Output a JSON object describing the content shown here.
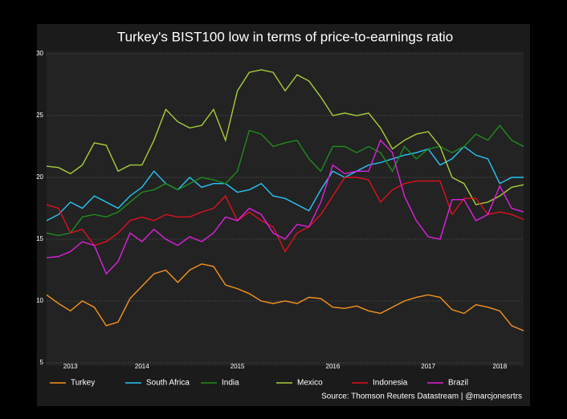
{
  "chart_data": {
    "type": "line",
    "title": "Turkey's BIST100 low in terms of price-to-earnings ratio",
    "source": "Source: Thomson Reuters Datastream | @marcjonesrtrs",
    "x": [
      2013.5,
      2013.625,
      2013.75,
      2013.875,
      2014,
      2014.125,
      2014.25,
      2014.375,
      2014.5,
      2014.625,
      2014.75,
      2014.875,
      2015,
      2015.125,
      2015.25,
      2015.375,
      2015.5,
      2015.625,
      2015.75,
      2015.875,
      2016,
      2016.125,
      2016.25,
      2016.375,
      2016.5,
      2016.625,
      2016.75,
      2016.875,
      2017,
      2017.125,
      2017.25,
      2017.375,
      2017.5,
      2017.625,
      2017.75,
      2017.875,
      2018,
      2018.125,
      2018.25,
      2018.375,
      2018.5
    ],
    "xlim": [
      2013.5,
      2018.5
    ],
    "xticks": [
      {
        "value": 2013.75,
        "label": "2013"
      },
      {
        "value": 2014.5,
        "label": "2014"
      },
      {
        "value": 2015.5,
        "label": "2015"
      },
      {
        "value": 2016.5,
        "label": "2016"
      },
      {
        "value": 2017.5,
        "label": "2017"
      },
      {
        "value": 2018.25,
        "label": "2018"
      }
    ],
    "ylim": [
      5,
      30
    ],
    "yticks": [
      5,
      10,
      15,
      20,
      25,
      30
    ],
    "grid": true,
    "series": [
      {
        "name": "Turkey",
        "color": "#f7931e",
        "values": [
          10.5,
          9.8,
          9.2,
          10.0,
          9.5,
          8.0,
          8.3,
          10.2,
          11.2,
          12.2,
          12.5,
          11.5,
          12.5,
          13.0,
          12.8,
          11.3,
          11.0,
          10.6,
          10.0,
          9.8,
          10.0,
          9.8,
          10.3,
          10.2,
          9.5,
          9.4,
          9.6,
          9.2,
          9.0,
          9.5,
          10.0,
          10.3,
          10.5,
          10.3,
          9.3,
          9.0,
          9.7,
          9.5,
          9.2,
          8.0,
          7.6
        ]
      },
      {
        "name": "South Africa",
        "color": "#29c5f6",
        "values": [
          16.5,
          17.0,
          18.0,
          17.5,
          18.5,
          18.0,
          17.5,
          18.5,
          19.2,
          20.5,
          19.5,
          19.0,
          20.0,
          19.2,
          19.5,
          19.5,
          18.8,
          19.0,
          19.5,
          18.5,
          18.3,
          17.8,
          17.3,
          19.0,
          20.5,
          20.0,
          20.5,
          21.0,
          21.2,
          21.5,
          21.8,
          22.0,
          22.3,
          21.0,
          21.5,
          22.5,
          21.8,
          21.5,
          19.5,
          20.0,
          20.0
        ]
      },
      {
        "name": "India",
        "color": "#1e8c1e",
        "values": [
          15.5,
          15.3,
          15.5,
          16.8,
          17.0,
          16.8,
          17.2,
          18.0,
          18.8,
          19.0,
          19.5,
          19.0,
          19.5,
          20.0,
          19.8,
          19.5,
          20.5,
          23.8,
          23.5,
          22.5,
          22.8,
          23.0,
          21.5,
          20.5,
          22.5,
          22.5,
          22.0,
          22.5,
          22.0,
          20.5,
          22.5,
          21.5,
          22.3,
          22.5,
          22.0,
          22.5,
          23.5,
          23.0,
          24.2,
          23.0,
          22.5
        ]
      },
      {
        "name": "Mexico",
        "color": "#a6ce39",
        "values": [
          20.9,
          20.8,
          20.3,
          21.0,
          22.8,
          22.6,
          20.5,
          21.0,
          21.0,
          23.0,
          25.5,
          24.5,
          24.0,
          24.2,
          25.5,
          23.0,
          27.0,
          28.5,
          28.7,
          28.5,
          27.0,
          28.3,
          27.8,
          26.5,
          25.0,
          25.2,
          25.0,
          25.2,
          24.0,
          22.3,
          23.0,
          23.5,
          23.7,
          22.5,
          20.0,
          19.5,
          17.8,
          18.0,
          18.5,
          19.2,
          19.4
        ]
      },
      {
        "name": "Indonesia",
        "color": "#e0101f",
        "values": [
          17.8,
          17.5,
          15.5,
          15.8,
          14.5,
          14.8,
          15.5,
          16.5,
          16.8,
          16.5,
          17.0,
          16.8,
          16.8,
          17.2,
          17.5,
          18.5,
          16.5,
          17.2,
          16.5,
          16.0,
          14.0,
          15.5,
          16.0,
          17.0,
          18.5,
          20.0,
          20.0,
          19.8,
          18.0,
          19.0,
          19.5,
          19.7,
          19.7,
          19.7,
          17.0,
          18.3,
          18.3,
          17.0,
          17.2,
          17.0,
          16.6
        ]
      },
      {
        "name": "Brazil",
        "color": "#e020e0",
        "values": [
          13.5,
          13.6,
          14.0,
          14.8,
          14.5,
          12.2,
          13.2,
          15.5,
          14.8,
          15.8,
          15.0,
          14.5,
          15.2,
          14.8,
          15.5,
          16.8,
          16.5,
          17.5,
          17.0,
          15.5,
          15.0,
          16.2,
          16.0,
          18.0,
          21.0,
          20.3,
          20.5,
          20.5,
          23.0,
          22.0,
          18.5,
          16.5,
          15.2,
          15.0,
          18.2,
          18.2,
          16.5,
          17.0,
          19.3,
          17.5,
          17.2
        ]
      }
    ]
  }
}
